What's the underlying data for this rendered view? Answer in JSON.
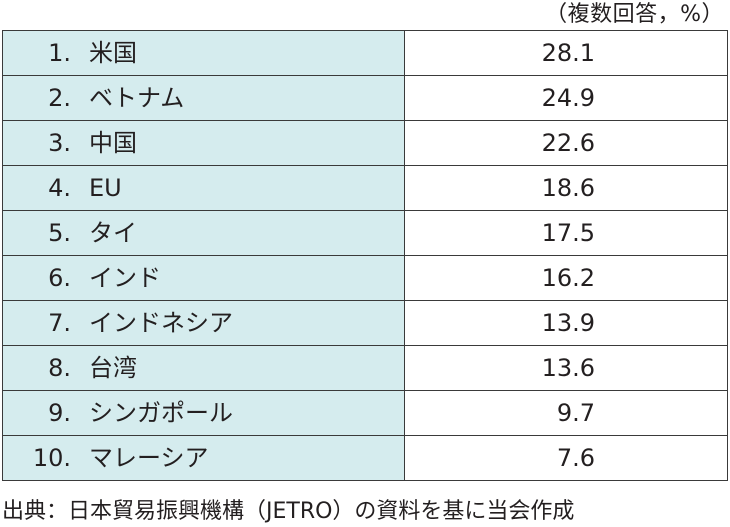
{
  "unit_note": "（複数回答，%）",
  "rows": [
    {
      "rank": "1.",
      "country": "米国",
      "value": "28.1"
    },
    {
      "rank": "2.",
      "country": "ベトナム",
      "value": "24.9"
    },
    {
      "rank": "3.",
      "country": "中国",
      "value": "22.6"
    },
    {
      "rank": "4.",
      "country": "EU",
      "value": "18.6"
    },
    {
      "rank": "5.",
      "country": "タイ",
      "value": "17.5"
    },
    {
      "rank": "6.",
      "country": "インド",
      "value": "16.2"
    },
    {
      "rank": "7.",
      "country": "インドネシア",
      "value": "13.9"
    },
    {
      "rank": "8.",
      "country": "台湾",
      "value": "13.6"
    },
    {
      "rank": "9.",
      "country": "シンガポール",
      "value": "9.7"
    },
    {
      "rank": "10.",
      "country": "マレーシア",
      "value": "7.6"
    }
  ],
  "source_note": "出典：日本貿易振興機構（JETRO）の資料を基に当会作成",
  "colors": {
    "country_cell_bg": "#d5ecee",
    "border": "#3a3a3a",
    "text": "#231f20"
  }
}
